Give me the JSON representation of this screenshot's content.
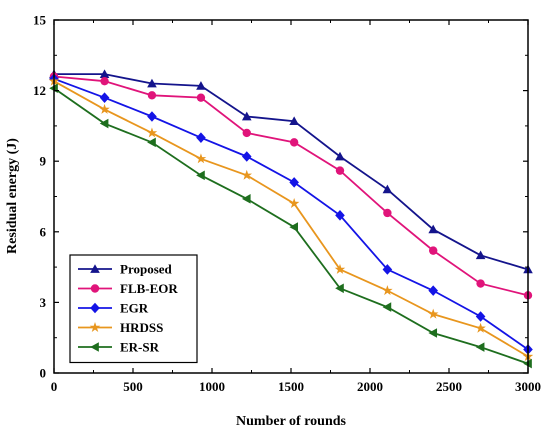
{
  "chart_data": {
    "type": "line",
    "title": "",
    "xlabel": "Number of rounds",
    "ylabel": "Residual energy (J)",
    "xlim": [
      0,
      3000
    ],
    "ylim": [
      0,
      15
    ],
    "xticks": [
      0,
      500,
      1000,
      1500,
      2000,
      2500,
      3000
    ],
    "yticks": [
      0,
      3,
      6,
      9,
      12,
      15
    ],
    "x": [
      0,
      320,
      620,
      930,
      1220,
      1520,
      1810,
      2110,
      2400,
      2700,
      3000
    ],
    "legend_position": "bottom-left",
    "grid": false,
    "series": [
      {
        "name": "Proposed",
        "color": "#14148c",
        "marker": "triangle-up",
        "values": [
          12.7,
          12.7,
          12.3,
          12.2,
          10.9,
          10.7,
          9.2,
          7.8,
          6.1,
          5.0,
          4.4
        ]
      },
      {
        "name": "FLB-EOR",
        "color": "#e0147a",
        "marker": "circle",
        "values": [
          12.6,
          12.4,
          11.8,
          11.7,
          10.2,
          9.8,
          8.6,
          6.8,
          5.2,
          3.8,
          3.3
        ]
      },
      {
        "name": "EGR",
        "color": "#1414e6",
        "marker": "diamond",
        "values": [
          12.5,
          11.7,
          10.9,
          10.0,
          9.2,
          8.1,
          6.7,
          4.4,
          3.5,
          2.4,
          1.0
        ]
      },
      {
        "name": "HRDSS",
        "color": "#e8961e",
        "marker": "star",
        "values": [
          12.4,
          11.2,
          10.2,
          9.1,
          8.4,
          7.2,
          4.4,
          3.5,
          2.5,
          1.9,
          0.7
        ]
      },
      {
        "name": "ER-SR",
        "color": "#1e6e1e",
        "marker": "triangle-left",
        "values": [
          12.1,
          10.6,
          9.8,
          8.4,
          7.4,
          6.2,
          3.6,
          2.8,
          1.7,
          1.1,
          0.4
        ]
      }
    ]
  }
}
